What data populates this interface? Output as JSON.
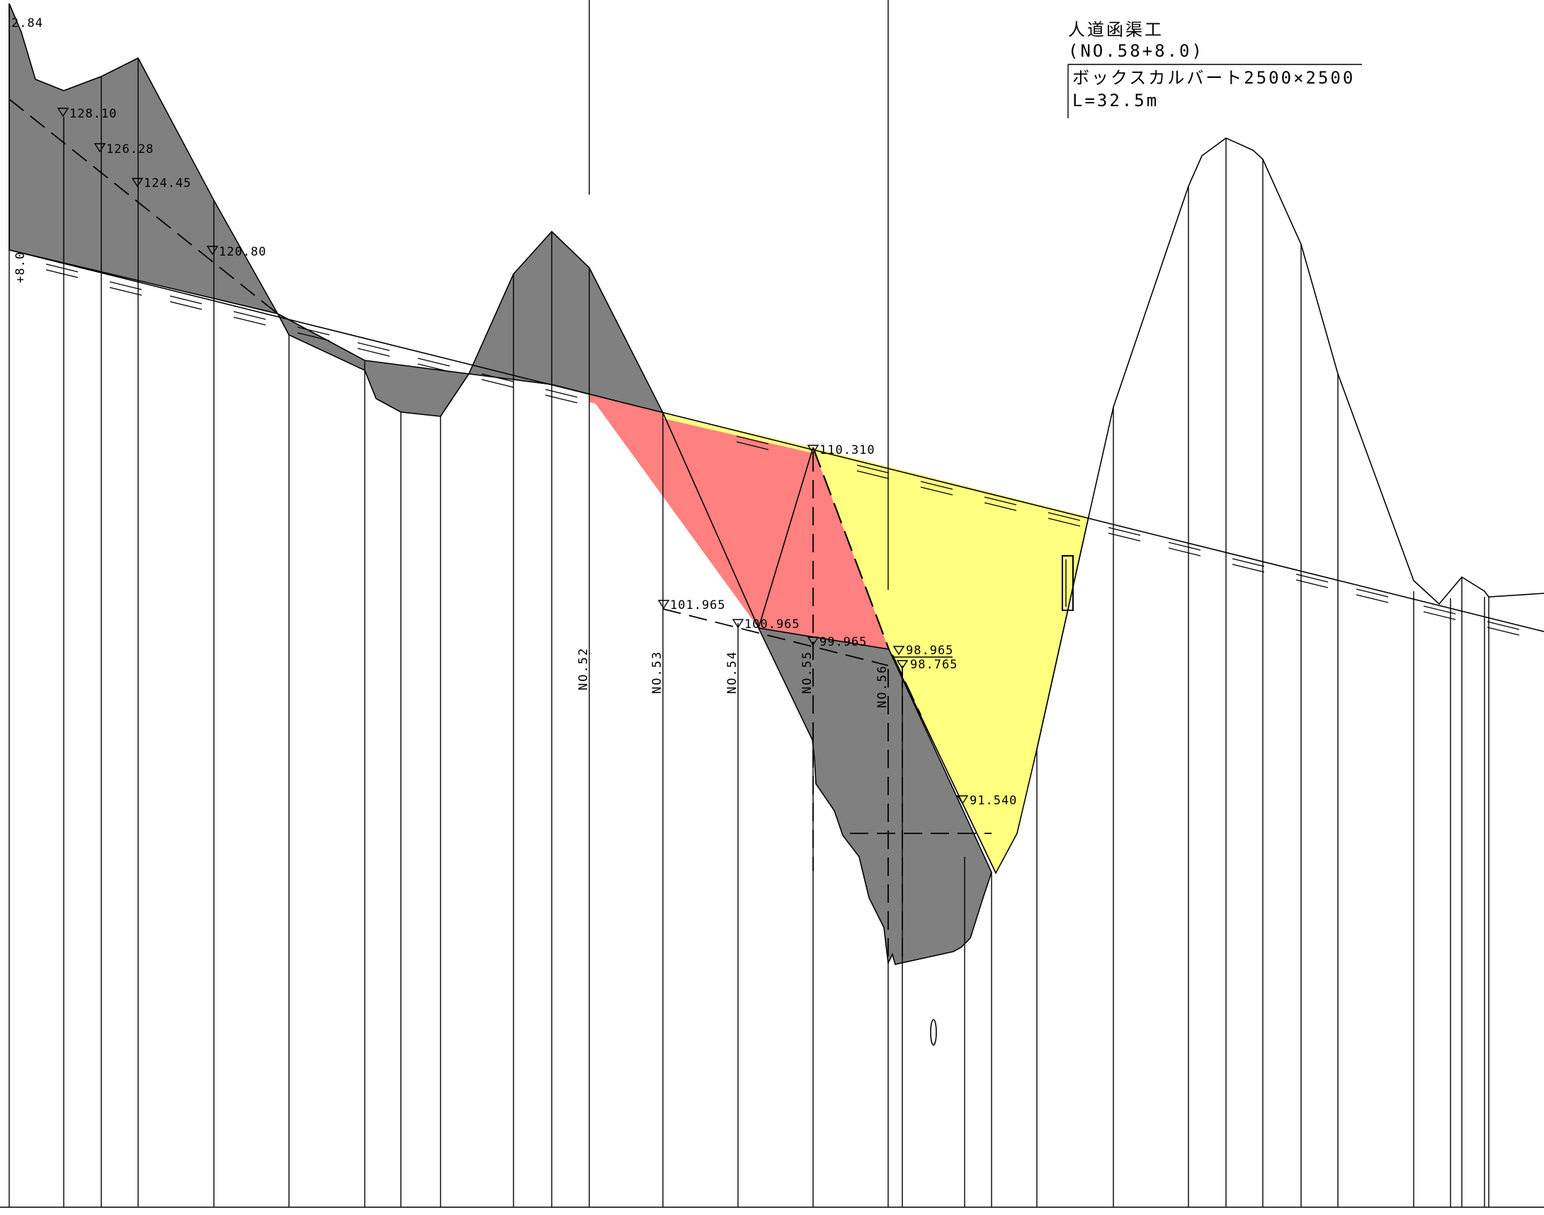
{
  "colors": {
    "dark_fill": "#808080",
    "red_fill": "#ff8080",
    "yellow_fill": "#ffff80",
    "line": "#000000",
    "background": "#ffffff"
  },
  "title_block": {
    "name": "人道函渠工",
    "station": "(NO.58+8.0)",
    "structure": "ボックスカルバート2500×2500",
    "length": "L=32.5m"
  },
  "corner_label": "2.84",
  "station_marker": "+8.0",
  "elevations": {
    "e1": "128.10",
    "e2": "126.28",
    "e3": "124.45",
    "e4": "120.80",
    "e5": "110.310",
    "e6": "101.965",
    "e7": "100.965",
    "e8": "99.965",
    "e9": "98.965",
    "e10": "98.765",
    "e11": "91.540"
  },
  "stations": {
    "s52": "NO.52",
    "s53": "NO.53",
    "s54": "NO.54",
    "s55": "NO.55",
    "s56": "NO.56"
  }
}
